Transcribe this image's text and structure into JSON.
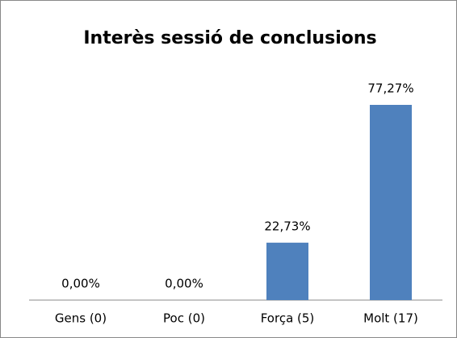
{
  "chart_data": {
    "type": "bar",
    "title": "Interès sessió de conclusions",
    "categories": [
      "Gens (0)",
      "Poc (0)",
      "Força (5)",
      "Molt (17)"
    ],
    "values": [
      0,
      0,
      22.73,
      77.27
    ],
    "value_labels": [
      "0,00%",
      "0,00%",
      "22,73%",
      "77,27%"
    ],
    "color": "#4f81bd"
  }
}
